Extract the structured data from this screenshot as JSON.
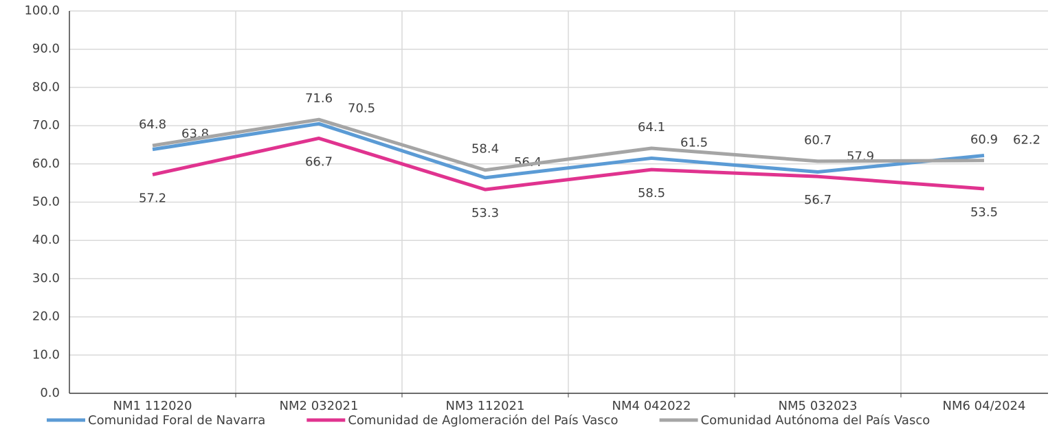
{
  "chart_data": {
    "type": "line",
    "categories": [
      "NM1 112020",
      "NM2 032021",
      "NM3 112021",
      "NM4 042022",
      "NM5 032023",
      "NM6 04/2024"
    ],
    "series": [
      {
        "name": "Comunidad Foral de Navarra",
        "color": "#5b9bd5",
        "values": [
          63.8,
          70.5,
          56.4,
          61.5,
          57.9,
          62.2
        ]
      },
      {
        "name": "Comunidad de Aglomeración del País Vasco",
        "color": "#e0338f",
        "values": [
          57.2,
          66.7,
          53.3,
          58.5,
          56.7,
          53.5
        ]
      },
      {
        "name": "Comunidad Autónoma del País Vasco",
        "color": "#a5a5a5",
        "values": [
          64.8,
          71.6,
          58.4,
          64.1,
          60.7,
          60.9
        ]
      }
    ],
    "ylim": [
      0,
      100
    ],
    "yticks": [
      {
        "value": 0,
        "label": "0.0"
      },
      {
        "value": 10,
        "label": "10.0"
      },
      {
        "value": 20,
        "label": "20.0"
      },
      {
        "value": 30,
        "label": "30.0"
      },
      {
        "value": 40,
        "label": "40.0"
      },
      {
        "value": 50,
        "label": "50.0"
      },
      {
        "value": 60,
        "label": "60.0"
      },
      {
        "value": 70,
        "label": "70.0"
      },
      {
        "value": 80,
        "label": "80.0"
      },
      {
        "value": 90,
        "label": "90.0"
      },
      {
        "value": 100,
        "label": "100.0"
      }
    ],
    "grid": true,
    "legend": "bottom"
  }
}
